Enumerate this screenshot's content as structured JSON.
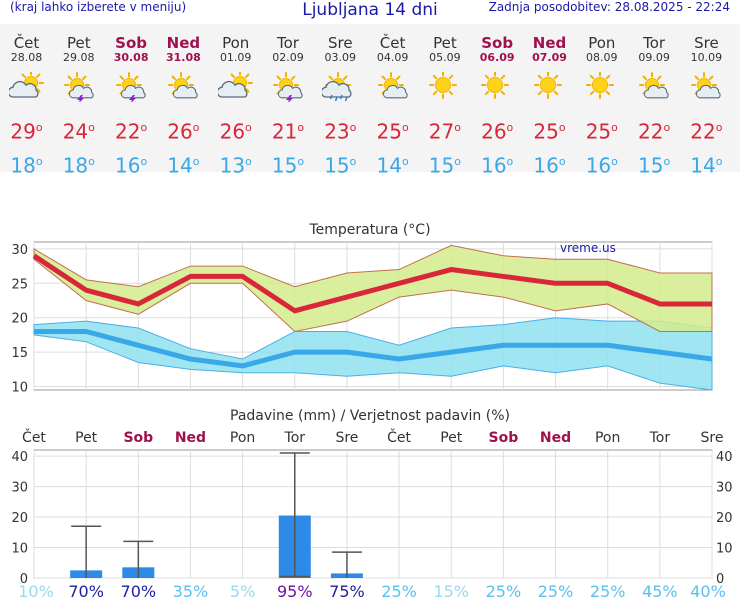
{
  "header": {
    "left_note": "(kraj lahko izberete v meniju)",
    "title": "Ljubljana 14 dni",
    "updated": "Zadnja posodobitev: 28.08.2025 - 22:24"
  },
  "days": [
    {
      "name": "Čet",
      "date": "28.08",
      "weekend": false,
      "icon": "partly-cloudy-icon",
      "tmax": "29",
      "tmin": "18"
    },
    {
      "name": "Pet",
      "date": "29.08",
      "weekend": false,
      "icon": "sun-thunderstorm-icon",
      "tmax": "24",
      "tmin": "18"
    },
    {
      "name": "Sob",
      "date": "30.08",
      "weekend": true,
      "icon": "sun-thunderstorm-icon",
      "tmax": "22",
      "tmin": "16"
    },
    {
      "name": "Ned",
      "date": "31.08",
      "weekend": true,
      "icon": "sun-cloud-icon",
      "tmax": "26",
      "tmin": "14"
    },
    {
      "name": "Pon",
      "date": "01.09",
      "weekend": false,
      "icon": "partly-cloudy-icon",
      "tmax": "26",
      "tmin": "13"
    },
    {
      "name": "Tor",
      "date": "02.09",
      "weekend": false,
      "icon": "sun-thunderstorm-icon",
      "tmax": "21",
      "tmin": "15"
    },
    {
      "name": "Sre",
      "date": "03.09",
      "weekend": false,
      "icon": "sun-rain-icon",
      "tmax": "23",
      "tmin": "15"
    },
    {
      "name": "Čet",
      "date": "04.09",
      "weekend": false,
      "icon": "sun-cloud-icon",
      "tmax": "25",
      "tmin": "14"
    },
    {
      "name": "Pet",
      "date": "05.09",
      "weekend": false,
      "icon": "sun-icon",
      "tmax": "27",
      "tmin": "15"
    },
    {
      "name": "Sob",
      "date": "06.09",
      "weekend": true,
      "icon": "sun-icon",
      "tmax": "26",
      "tmin": "16"
    },
    {
      "name": "Ned",
      "date": "07.09",
      "weekend": true,
      "icon": "sun-icon",
      "tmax": "25",
      "tmin": "16"
    },
    {
      "name": "Pon",
      "date": "08.09",
      "weekend": false,
      "icon": "sun-icon",
      "tmax": "25",
      "tmin": "16"
    },
    {
      "name": "Tor",
      "date": "09.09",
      "weekend": false,
      "icon": "sun-cloud-icon",
      "tmax": "22",
      "tmin": "15"
    },
    {
      "name": "Sre",
      "date": "10.09",
      "weekend": false,
      "icon": "sun-cloud-icon",
      "tmax": "22",
      "tmin": "14"
    }
  ],
  "colors": {
    "tmax": "#d9273a",
    "tmin": "#38a8e8",
    "weekend": "#a0104f",
    "max_band": "#d4ec8c",
    "min_band": "#8fe0f0",
    "precip_bar": "#2d8ae6",
    "prob_high": "#2020a0",
    "prob_very_high": "#7010a0",
    "prob_low": "#9ad8f0"
  },
  "chart_data": [
    {
      "type": "line",
      "title": "Temperatura (°C)",
      "watermark": "vreme.us",
      "categories": [
        "Čet",
        "Pet",
        "Sob",
        "Ned",
        "Pon",
        "Tor",
        "Sre",
        "Čet",
        "Pet",
        "Sob",
        "Ned",
        "Pon",
        "Tor",
        "Sre"
      ],
      "ylim": [
        9.5,
        31
      ],
      "yticks": [
        10,
        15,
        20,
        25,
        30
      ],
      "grid": true,
      "series": [
        {
          "name": "max",
          "values": [
            29,
            24,
            22,
            26,
            26,
            21,
            23,
            25,
            27,
            26,
            25,
            25,
            22,
            22
          ]
        },
        {
          "name": "max_lo",
          "values": [
            28.5,
            22.5,
            20.5,
            25,
            25,
            18,
            19.5,
            23,
            24,
            23,
            21,
            22,
            18,
            18
          ]
        },
        {
          "name": "max_hi",
          "values": [
            30,
            25.5,
            24.5,
            27.5,
            27.5,
            24.5,
            26.5,
            27,
            30.5,
            29,
            28.5,
            28.5,
            26.5,
            26.5
          ]
        },
        {
          "name": "min",
          "values": [
            18,
            18,
            16,
            14,
            13,
            15,
            15,
            14,
            15,
            16,
            16,
            16,
            15,
            14
          ]
        },
        {
          "name": "min_lo",
          "values": [
            17.5,
            16.5,
            13.5,
            12.5,
            12,
            12,
            11.5,
            12,
            11.5,
            13,
            12,
            13,
            10.5,
            9.5
          ]
        },
        {
          "name": "min_hi",
          "values": [
            19,
            19.5,
            18.5,
            15.5,
            14,
            18,
            18,
            16,
            18.5,
            19,
            20,
            19.5,
            19.5,
            18.5
          ]
        }
      ]
    },
    {
      "type": "bar",
      "title": "Padavine (mm) / Verjetnost padavin (%)",
      "categories": [
        "Čet",
        "Pet",
        "Sob",
        "Ned",
        "Pon",
        "Tor",
        "Sre",
        "Čet",
        "Pet",
        "Sob",
        "Ned",
        "Pon",
        "Tor",
        "Sre"
      ],
      "weekend": [
        false,
        false,
        true,
        true,
        false,
        false,
        false,
        false,
        false,
        true,
        true,
        false,
        false,
        false
      ],
      "ylim": [
        0,
        42
      ],
      "yticks": [
        0,
        10,
        20,
        30,
        40
      ],
      "values": [
        0,
        2.5,
        3.5,
        0,
        0,
        20.5,
        1.5,
        0,
        0,
        0,
        0,
        0,
        0,
        0
      ],
      "error_low": [
        0,
        0,
        0,
        0,
        0,
        0.5,
        0,
        0,
        0,
        0,
        0,
        0,
        0,
        0
      ],
      "error_high": [
        null,
        17,
        12,
        null,
        null,
        41,
        8.5,
        null,
        null,
        null,
        null,
        null,
        null,
        null
      ],
      "probability": [
        "10%",
        "70%",
        "70%",
        "35%",
        "5%",
        "95%",
        "75%",
        "25%",
        "15%",
        "25%",
        "25%",
        "25%",
        "45%",
        "40%"
      ],
      "probability_level": [
        "low",
        "high",
        "high",
        "mid",
        "low",
        "very_high",
        "high",
        "mid",
        "low",
        "mid",
        "mid",
        "mid",
        "mid",
        "mid"
      ]
    }
  ]
}
